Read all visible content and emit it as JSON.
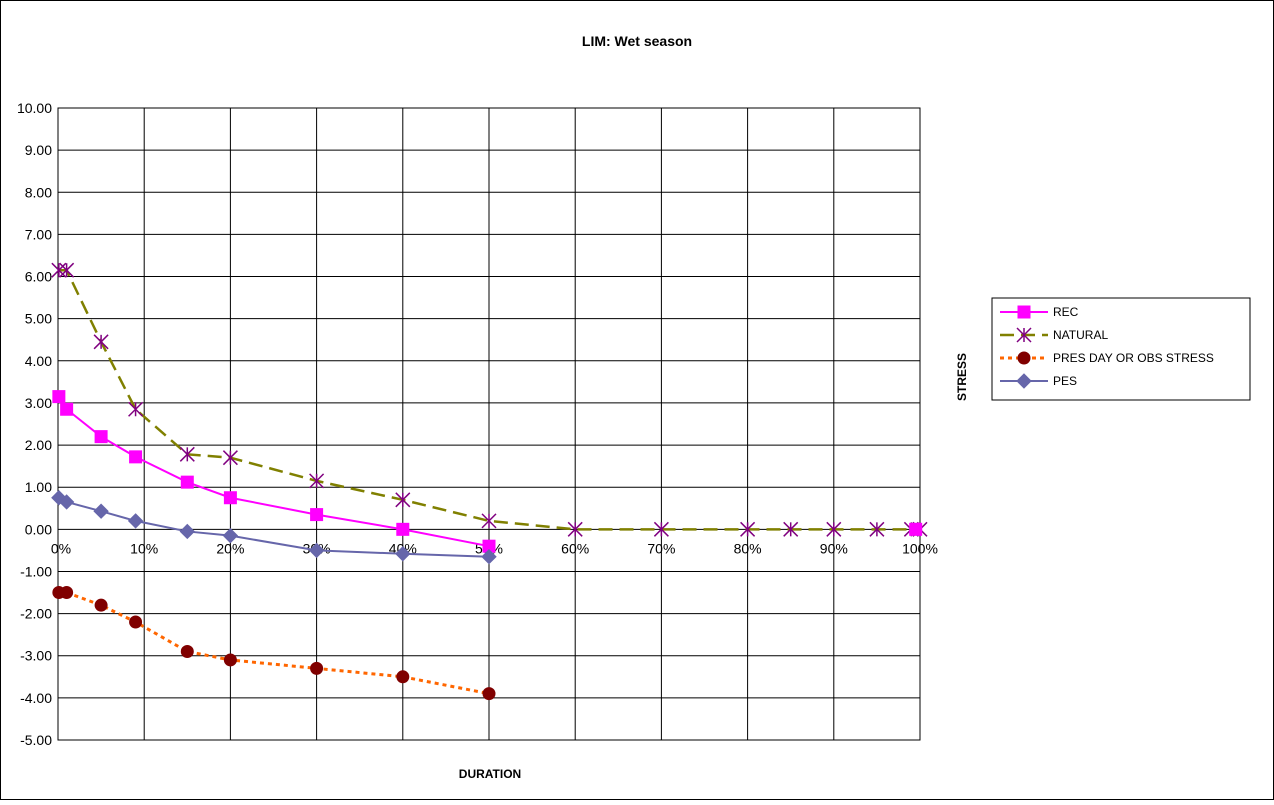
{
  "chart_data": {
    "type": "line",
    "title": "LIM: Wet season",
    "xlabel": "DURATION",
    "ylabel": "STRESS",
    "xlim": [
      0,
      100
    ],
    "ylim": [
      -5,
      10
    ],
    "grid": true,
    "legend_position": "right",
    "x_ticks": [
      "0%",
      "10%",
      "20%",
      "30%",
      "40%",
      "50%",
      "60%",
      "70%",
      "80%",
      "90%",
      "100%"
    ],
    "y_ticks": [
      "10.00",
      "9.00",
      "8.00",
      "7.00",
      "6.00",
      "5.00",
      "4.00",
      "3.00",
      "2.00",
      "1.00",
      "0.00",
      "-1.00",
      "-2.00",
      "-3.00",
      "-4.00",
      "-5.00"
    ],
    "series": [
      {
        "name": "REC",
        "color": "#ff00ff",
        "line_style": "solid",
        "marker": "square",
        "x": [
          0.1,
          1,
          5,
          9,
          15,
          20,
          30,
          40,
          50
        ],
        "y": [
          3.15,
          2.85,
          2.2,
          1.72,
          1.12,
          0.75,
          0.35,
          0.0,
          -0.4
        ]
      },
      {
        "name": "NATURAL",
        "color": "#808000",
        "marker_color": "#800080",
        "line_style": "dashed",
        "marker": "asterisk",
        "x": [
          0.1,
          1,
          5,
          9,
          15,
          20,
          30,
          40,
          50,
          60,
          70,
          80,
          85,
          90,
          95,
          99,
          100
        ],
        "y": [
          6.15,
          6.15,
          4.45,
          2.85,
          1.78,
          1.7,
          1.15,
          0.7,
          0.2,
          0,
          0,
          0,
          0,
          0,
          0,
          0,
          0
        ]
      },
      {
        "name": "PRES DAY OR OBS STRESS",
        "color": "#ff6600",
        "marker_color": "#800000",
        "line_style": "dotted",
        "marker": "circle",
        "x": [
          0.1,
          1,
          5,
          9,
          15,
          20,
          30,
          40,
          50
        ],
        "y": [
          -1.5,
          -1.5,
          -1.8,
          -2.2,
          -2.9,
          -3.1,
          -3.3,
          -3.5,
          -3.9
        ]
      },
      {
        "name": "PES",
        "color": "#6666aa",
        "line_style": "solid",
        "marker": "diamond",
        "x": [
          0.1,
          1,
          5,
          9,
          15,
          20,
          30,
          40,
          50
        ],
        "y": [
          0.75,
          0.65,
          0.43,
          0.2,
          -0.05,
          -0.15,
          -0.5,
          -0.58,
          -0.65
        ]
      }
    ],
    "extra_marker": {
      "series": "REC",
      "x": 99.5,
      "y": 0.0
    }
  }
}
